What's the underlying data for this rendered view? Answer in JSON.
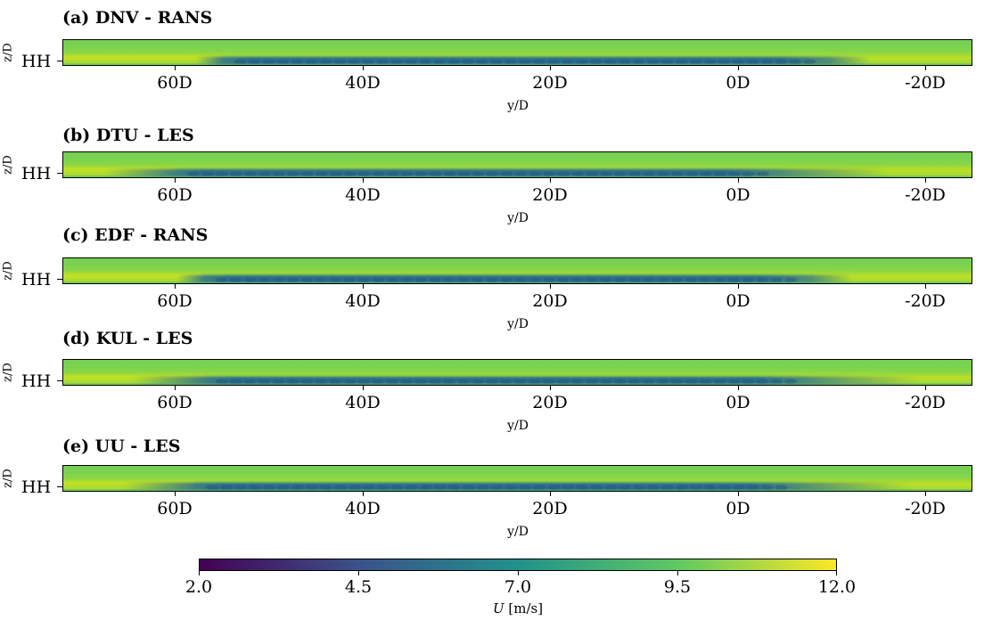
{
  "chart_data": [
    {
      "type": "heatmap",
      "title": "(a) DNV - RANS",
      "ylabel": "z/D",
      "ytick": "HH",
      "xlabel": "y/D",
      "xticks": [
        "60D",
        "40D",
        "20D",
        "0D",
        "-20D"
      ],
      "xlim": [
        72,
        -25
      ],
      "wake_y": [
        55,
        -10
      ],
      "wake_edge": "sharp"
    },
    {
      "type": "heatmap",
      "title": "(b) DTU - LES",
      "ylabel": "z/D",
      "ytick": "HH",
      "xlabel": "y/D",
      "xticks": [
        "60D",
        "40D",
        "20D",
        "0D",
        "-20D"
      ],
      "xlim": [
        72,
        -25
      ],
      "wake_y": [
        60,
        -5
      ],
      "wake_edge": "smooth"
    },
    {
      "type": "heatmap",
      "title": "(c) EDF - RANS",
      "ylabel": "z/D",
      "ytick": "HH",
      "xlabel": "y/D",
      "xticks": [
        "60D",
        "40D",
        "20D",
        "0D",
        "-20D"
      ],
      "xlim": [
        72,
        -25
      ],
      "wake_y": [
        57,
        -8
      ],
      "wake_edge": "sharp"
    },
    {
      "type": "heatmap",
      "title": "(d) KUL - LES",
      "ylabel": "z/D",
      "ytick": "HH",
      "xlabel": "y/D",
      "xticks": [
        "60D",
        "40D",
        "20D",
        "0D",
        "-20D"
      ],
      "xlim": [
        72,
        -25
      ],
      "wake_y": [
        57,
        -8
      ],
      "wake_edge": "smooth"
    },
    {
      "type": "heatmap",
      "title": "(e) UU - LES",
      "ylabel": "z/D",
      "ytick": "HH",
      "xlabel": "y/D",
      "xticks": [
        "60D",
        "40D",
        "20D",
        "0D",
        "-20D"
      ],
      "xlim": [
        72,
        -25
      ],
      "wake_y": [
        58,
        -7
      ],
      "wake_edge": "smooth"
    }
  ],
  "colorbar": {
    "label_var": "U",
    "label_unit": " [m/s]",
    "ticks": [
      "2.0",
      "4.5",
      "7.0",
      "9.5",
      "12.0"
    ],
    "range": [
      2.0,
      12.0
    ],
    "colormap": "viridis",
    "colors": [
      "#440154",
      "#3b528b",
      "#21918c",
      "#5ec962",
      "#fde725"
    ]
  }
}
